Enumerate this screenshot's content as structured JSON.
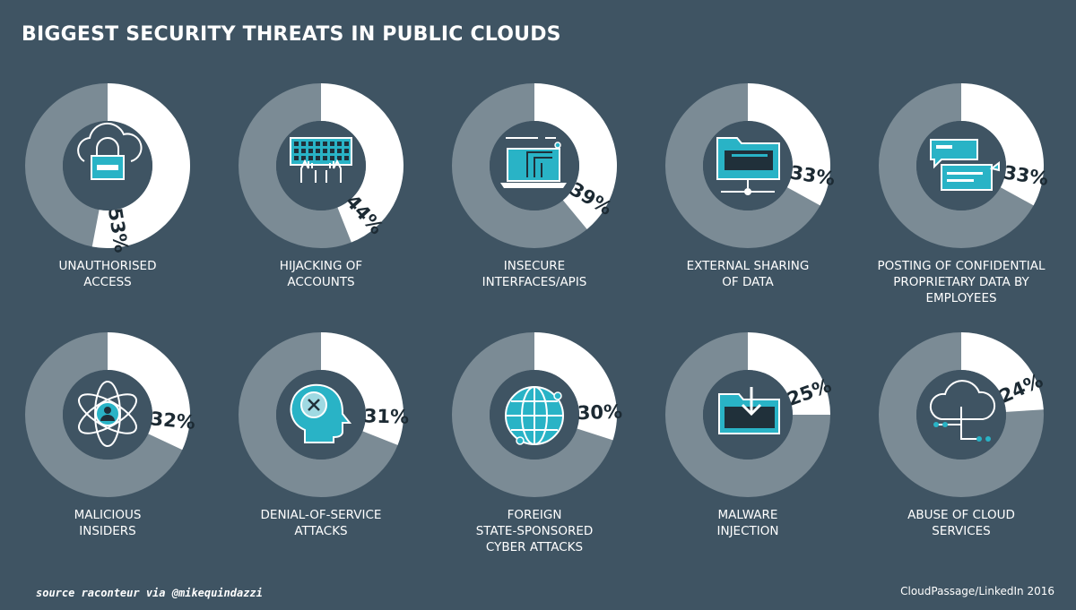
{
  "title": "BIGGEST SECURITY THREATS IN PUBLIC CLOUDS",
  "source_note": "source raconteur via @mikequindazzi",
  "credit": "CloudPassage/LinkedIn 2016",
  "colors": {
    "background": "#3f5463",
    "donut_track": "#7b8b95",
    "donut_value": "#ffffff",
    "icon_teal": "#29b3c6",
    "icon_dark": "#20303a"
  },
  "chart_data": {
    "type": "donut",
    "title": "BIGGEST SECURITY THREATS IN PUBLIC CLOUDS",
    "unit": "%",
    "items": [
      {
        "label": "UNAUTHORISED\nACCESS",
        "value": 53,
        "value_label": "53%",
        "icon": "cloud-lock-icon"
      },
      {
        "label": "HIJACKING OF\nACCOUNTS",
        "value": 44,
        "value_label": "44%",
        "icon": "keyboard-hands-icon"
      },
      {
        "label": "INSECURE\nINTERFACES/APIs",
        "value": 39,
        "value_label": "39%",
        "icon": "laptop-circuit-icon"
      },
      {
        "label": "EXTERNAL SHARING\nOF DATA",
        "value": 33,
        "value_label": "33%",
        "icon": "folder-network-icon"
      },
      {
        "label": "POSTING OF CONFIDENTIAL\nPROPRIETARY DATA BY\nEMPLOYEES",
        "value": 33,
        "value_label": "33%",
        "icon": "chat-bubbles-icon"
      },
      {
        "label": "MALICIOUS\nINSIDERS",
        "value": 32,
        "value_label": "32%",
        "icon": "atom-user-icon"
      },
      {
        "label": "DENIAL-OF-SERVICE\nATTACKS",
        "value": 31,
        "value_label": "31%",
        "icon": "head-block-icon"
      },
      {
        "label": "FOREIGN\nSTATE-SPONSORED\nCYBER ATTACKS",
        "value": 30,
        "value_label": "30%",
        "icon": "globe-icon"
      },
      {
        "label": "MALWARE\nINJECTION",
        "value": 25,
        "value_label": "25%",
        "icon": "folder-download-icon"
      },
      {
        "label": "ABUSE OF CLOUD\nSERVICES",
        "value": 24,
        "value_label": "24%",
        "icon": "cloud-network-icon"
      }
    ]
  }
}
